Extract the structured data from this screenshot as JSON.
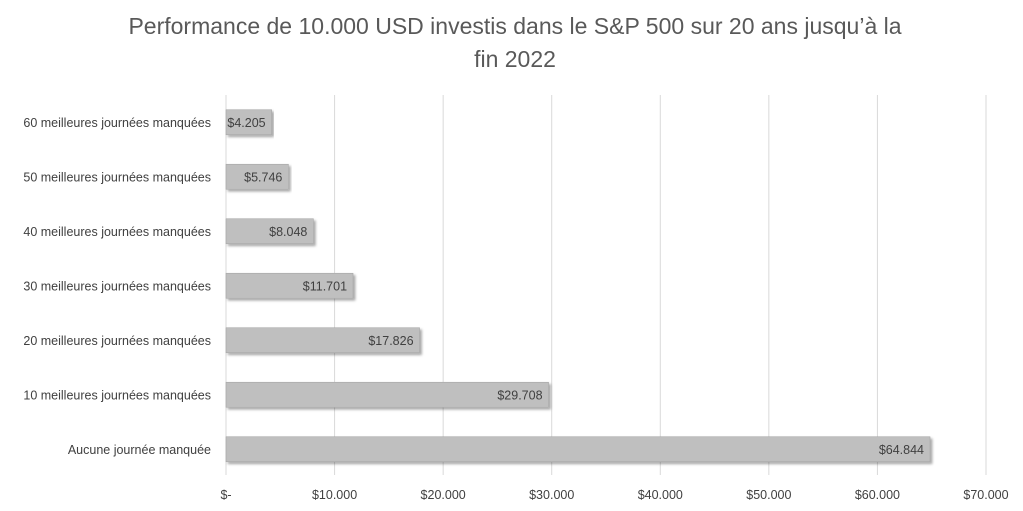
{
  "chart_data": {
    "type": "bar",
    "orientation": "horizontal",
    "title_lines": [
      "Performance de 10.000 USD investis dans le S&P 500 sur 20 ans jusqu’à la",
      "fin 2022"
    ],
    "categories": [
      "60 meilleures journées manquées",
      "50 meilleures journées manquées",
      "40 meilleures journées manquées",
      "30 meilleures journées manquées",
      "20 meilleures journées manquées",
      "10 meilleures journées manquées",
      "Aucune journée manquée"
    ],
    "values": [
      4205,
      5746,
      8048,
      11701,
      17826,
      29708,
      64844
    ],
    "value_labels": [
      "$4.205",
      "$5.746",
      "$8.048",
      "$11.701",
      "$17.826",
      "$29.708",
      "$64.844"
    ],
    "xlim": [
      0,
      70000
    ],
    "ticks": [
      0,
      10000,
      20000,
      30000,
      40000,
      50000,
      60000,
      70000
    ],
    "tick_labels": [
      "$-",
      "$10.000",
      "$20.000",
      "$30.000",
      "$40.000",
      "$50.000",
      "$60.000",
      "$70.000"
    ],
    "grid": true,
    "legend": "none",
    "bar_color": "#bfbfbf",
    "bar_stroke": "#a6a6a6"
  }
}
